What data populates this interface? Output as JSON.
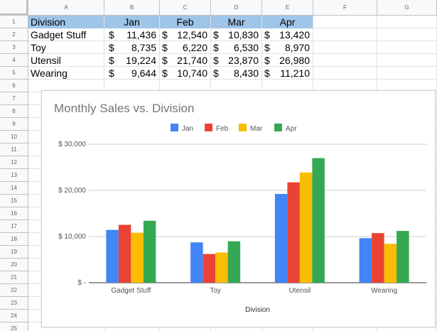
{
  "columns": [
    "A",
    "B",
    "C",
    "D",
    "E",
    "F",
    "G"
  ],
  "rows": [
    "1",
    "2",
    "3",
    "4",
    "5",
    "6",
    "7",
    "8",
    "9",
    "10",
    "11",
    "12",
    "13",
    "14",
    "15",
    "16",
    "17",
    "18",
    "19",
    "20",
    "21",
    "22",
    "23",
    "24",
    "25"
  ],
  "table": {
    "headers": [
      "Division",
      "Jan",
      "Feb",
      "Mar",
      "Apr"
    ],
    "currency_symbol": "$",
    "rows": [
      {
        "division": "Gadget Stuff",
        "values": [
          "11,436",
          "12,540",
          "10,830",
          "13,420"
        ]
      },
      {
        "division": "Toy",
        "values": [
          "8,735",
          "6,220",
          "6,530",
          "8,970"
        ]
      },
      {
        "division": "Utensil",
        "values": [
          "19,224",
          "21,740",
          "23,870",
          "26,980"
        ]
      },
      {
        "division": "Wearing",
        "values": [
          "9,644",
          "10,740",
          "8,430",
          "11,210"
        ]
      }
    ]
  },
  "chart_data": {
    "type": "bar",
    "title": "Monthly Sales vs. Division",
    "xlabel": "Division",
    "ylabel": "",
    "categories": [
      "Gadget Stuff",
      "Toy",
      "Utensil",
      "Wearing"
    ],
    "series": [
      {
        "name": "Jan",
        "color": "#4285f4",
        "values": [
          11436,
          8735,
          19224,
          9644
        ]
      },
      {
        "name": "Feb",
        "color": "#ea4335",
        "values": [
          12540,
          6220,
          21740,
          10740
        ]
      },
      {
        "name": "Mar",
        "color": "#fbbc04",
        "values": [
          10830,
          6530,
          23870,
          8430
        ]
      },
      {
        "name": "Apr",
        "color": "#34a853",
        "values": [
          13420,
          8970,
          26980,
          11210
        ]
      }
    ],
    "ylim": [
      0,
      30000
    ],
    "yticks": [
      0,
      10000,
      20000,
      30000
    ],
    "ytick_labels": [
      "$ -",
      "$ 10,000",
      "$ 20,000",
      "$ 30,000"
    ],
    "legend": "top",
    "grid": true
  },
  "colors": {
    "header_fill": "#9fc5e8",
    "title_text": "#757575",
    "axis_text": "#555555"
  }
}
